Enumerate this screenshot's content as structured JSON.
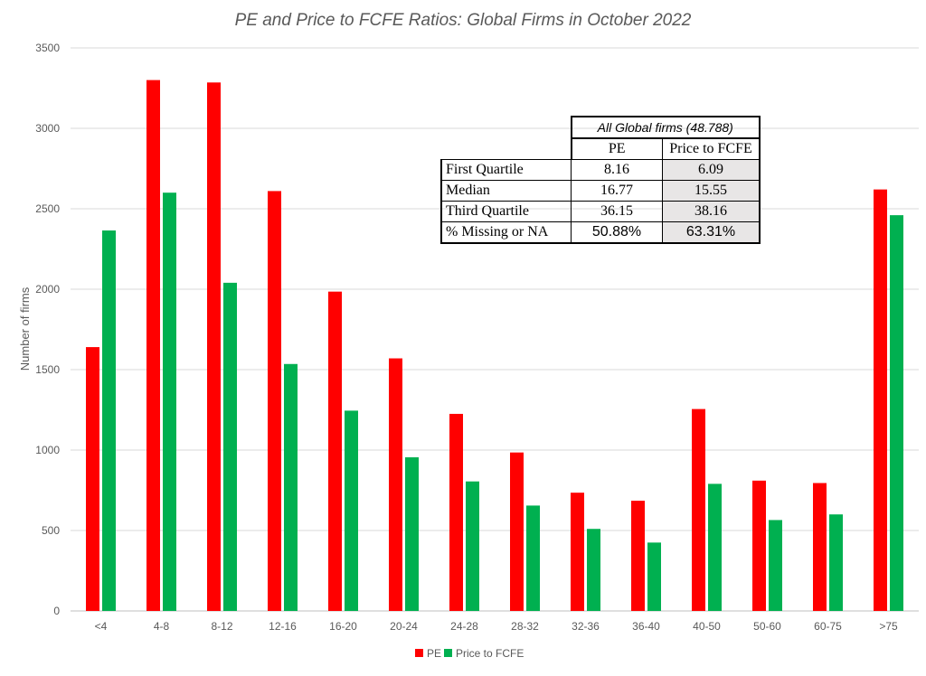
{
  "chart_data": {
    "type": "bar",
    "title": "PE and Price to FCFE Ratios: Global Firms in October 2022",
    "ylabel": "Number of firms",
    "xlabel": "",
    "ylim": [
      0,
      3500
    ],
    "yticks": [
      0,
      500,
      1000,
      1500,
      2000,
      2500,
      3000,
      3500
    ],
    "grid": true,
    "legend_position": "bottom",
    "categories": [
      "<4",
      "4-8",
      "8-12",
      "12-16",
      "16-20",
      "20-24",
      "24-28",
      "28-32",
      "32-36",
      "36-40",
      "40-50",
      "50-60",
      "60-75",
      ">75"
    ],
    "series": [
      {
        "name": "PE",
        "color": "#ff0000",
        "values": [
          1640,
          3300,
          3285,
          2610,
          1985,
          1570,
          1225,
          985,
          735,
          685,
          1255,
          810,
          795,
          2620
        ]
      },
      {
        "name": "Price to FCFE",
        "color": "#00b050",
        "values": [
          2365,
          2600,
          2040,
          1535,
          1245,
          955,
          805,
          655,
          510,
          425,
          790,
          565,
          600,
          2460
        ]
      }
    ]
  },
  "summary_table": {
    "caption": "All Global firms (48.788)",
    "columns": [
      "PE",
      "Price to FCFE"
    ],
    "rows": [
      {
        "label": "First Quartile",
        "pe": "8.16",
        "fcfe": "6.09"
      },
      {
        "label": "Median",
        "pe": "16.77",
        "fcfe": "15.55"
      },
      {
        "label": "Third Quartile",
        "pe": "36.15",
        "fcfe": "38.16"
      },
      {
        "label": "% Missing or NA",
        "pe": "50.88%",
        "fcfe": "63.31%"
      }
    ]
  }
}
